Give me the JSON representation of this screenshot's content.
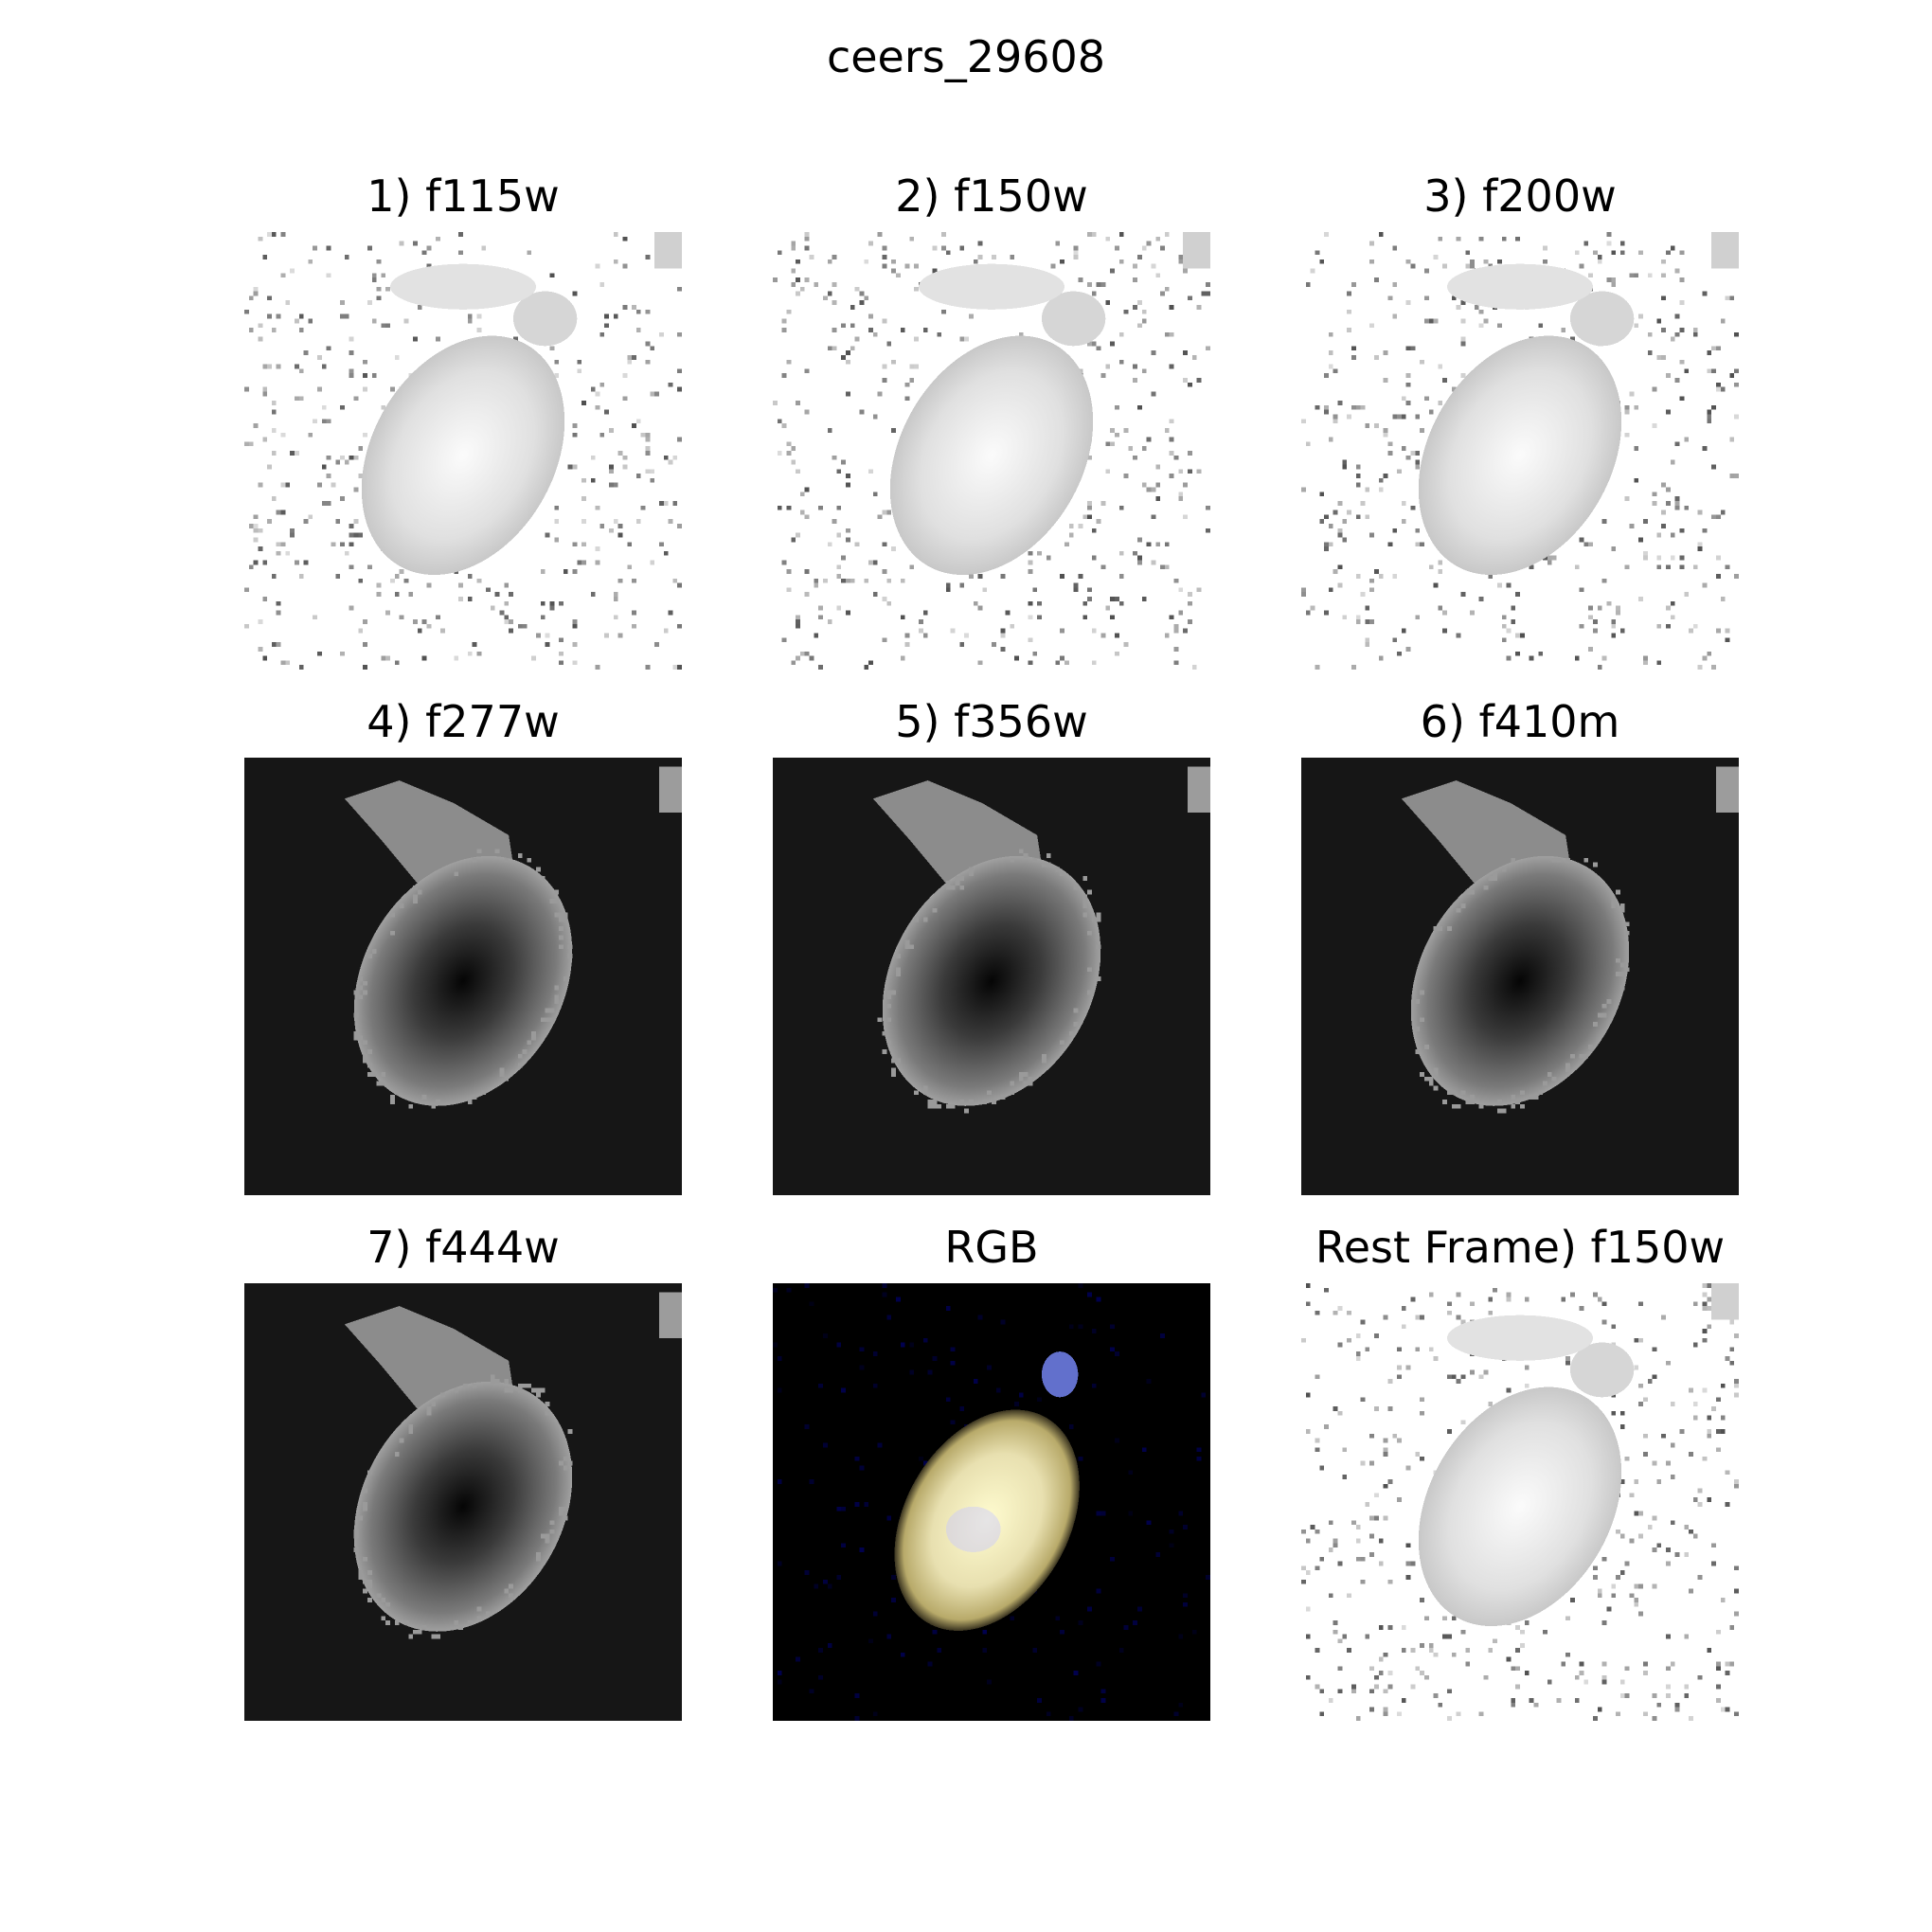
{
  "figure": {
    "title": "ceers_29608"
  },
  "panels": [
    {
      "title": "1) f115w",
      "style": "light"
    },
    {
      "title": "2) f150w",
      "style": "light"
    },
    {
      "title": "3) f200w",
      "style": "light"
    },
    {
      "title": "4) f277w",
      "style": "dark"
    },
    {
      "title": "5) f356w",
      "style": "dark"
    },
    {
      "title": "6) f410m",
      "style": "dark"
    },
    {
      "title": "7) f444w",
      "style": "dark"
    },
    {
      "title": "RGB",
      "style": "rgb"
    },
    {
      "title": "Rest Frame) f150w",
      "style": "light"
    }
  ],
  "colors": {
    "dark_background": "#161616",
    "rgb_background": "#000000",
    "rgb_core": "#fffcd0",
    "rgb_halo": "#b8aa6a",
    "rgb_blue": "#7a8cff"
  }
}
